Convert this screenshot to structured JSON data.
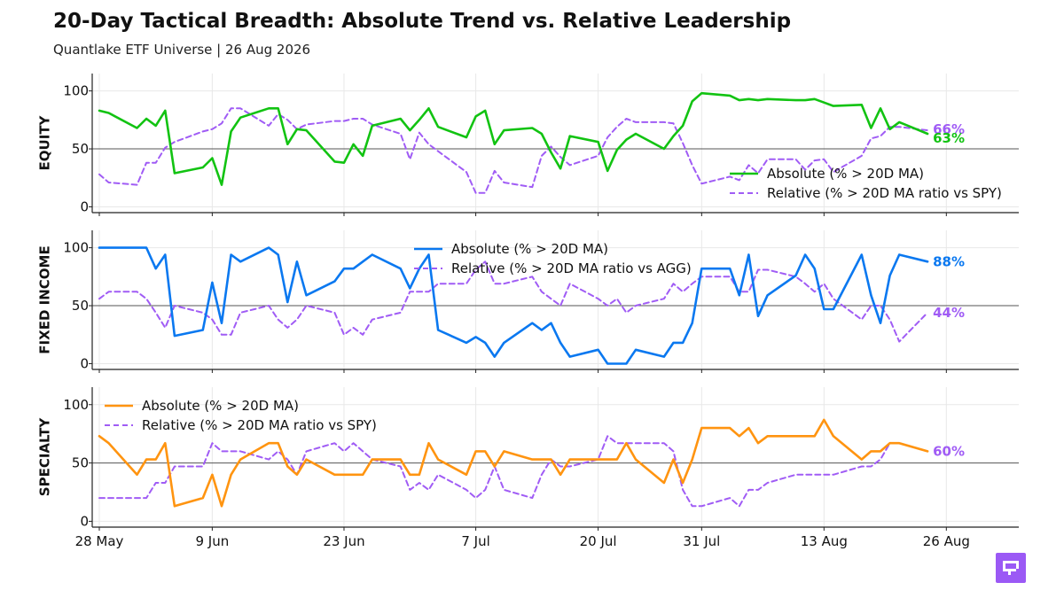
{
  "header": {
    "title": "20-Day Tactical Breadth: Absolute Trend vs. Relative Leadership",
    "subtitle": "Quantlake ETF Universe  |  26 Aug 2026"
  },
  "colors": {
    "relative": "#a05cf5",
    "equity_absolute": "#12c312",
    "fixed_income_absolute": "#0a78f0",
    "specialty_absolute": "#ff9410",
    "reference_line": "#555555",
    "grid": "#e8e8e8"
  },
  "logo": {
    "icon": "brand-logo-icon"
  },
  "chart_data": {
    "type": "line",
    "title": "20-Day Tactical Breadth: Absolute Trend vs. Relative Leadership",
    "subtitle": "Quantlake ETF Universe  |  26 Aug 2026",
    "x": [
      "2026-05-28",
      "2026-05-29",
      "2026-06-01",
      "2026-06-02",
      "2026-06-03",
      "2026-06-04",
      "2026-06-05",
      "2026-06-08",
      "2026-06-09",
      "2026-06-10",
      "2026-06-11",
      "2026-06-12",
      "2026-06-15",
      "2026-06-16",
      "2026-06-17",
      "2026-06-18",
      "2026-06-19",
      "2026-06-22",
      "2026-06-23",
      "2026-06-24",
      "2026-06-25",
      "2026-06-26",
      "2026-06-29",
      "2026-06-30",
      "2026-07-01",
      "2026-07-02",
      "2026-07-03",
      "2026-07-06",
      "2026-07-07",
      "2026-07-08",
      "2026-07-09",
      "2026-07-10",
      "2026-07-13",
      "2026-07-14",
      "2026-07-15",
      "2026-07-16",
      "2026-07-17",
      "2026-07-20",
      "2026-07-21",
      "2026-07-22",
      "2026-07-23",
      "2026-07-24",
      "2026-07-27",
      "2026-07-28",
      "2026-07-29",
      "2026-07-30",
      "2026-07-31",
      "2026-08-03",
      "2026-08-04",
      "2026-08-05",
      "2026-08-06",
      "2026-08-07",
      "2026-08-10",
      "2026-08-11",
      "2026-08-12",
      "2026-08-13",
      "2026-08-14",
      "2026-08-17",
      "2026-08-18",
      "2026-08-19",
      "2026-08-20",
      "2026-08-21",
      "2026-08-24",
      "2026-08-25",
      "2026-08-26"
    ],
    "xticks": [
      {
        "date": "2026-05-28",
        "label": "28 May"
      },
      {
        "date": "2026-06-09",
        "label": "9 Jun"
      },
      {
        "date": "2026-06-23",
        "label": "23 Jun"
      },
      {
        "date": "2026-07-07",
        "label": "7 Jul"
      },
      {
        "date": "2026-07-20",
        "label": "20 Jul"
      },
      {
        "date": "2026-07-31",
        "label": "31 Jul"
      },
      {
        "date": "2026-08-13",
        "label": "13 Aug"
      },
      {
        "date": "2026-08-26",
        "label": "26 Aug"
      }
    ],
    "xlim": [
      "2026-05-28",
      "2026-09-01"
    ],
    "ylim": [
      -5,
      115
    ],
    "yticks": [
      0,
      50,
      100
    ],
    "reference_line": 50,
    "grid": true,
    "panels": [
      {
        "ylabel": "EQUITY",
        "legend_position": "lower-right",
        "end_labels": [
          "66%",
          "63%"
        ],
        "series": [
          {
            "name": "Absolute (% > 20D MA)",
            "style": "solid",
            "values": [
              83,
              81,
              68,
              76,
              70,
              83,
              29,
              34,
              42,
              19,
              65,
              77,
              85,
              85,
              54,
              67,
              66,
              39,
              38,
              54,
              44,
              70,
              76,
              66,
              75,
              85,
              69,
              60,
              78,
              83,
              54,
              66,
              68,
              63,
              47,
              33,
              61,
              56,
              31,
              49,
              58,
              63,
              50,
              61,
              70,
              91,
              98,
              96,
              92,
              93,
              92,
              93,
              92,
              92,
              93,
              90,
              87,
              88,
              68,
              85,
              67,
              73,
              63,
              null,
              null
            ],
            "fix_note": ""
          },
          {
            "name": "Relative (% > 20D MA ratio vs SPY)",
            "style": "dashed",
            "values": [
              28,
              21,
              19,
              38,
              38,
              51,
              56,
              65,
              67,
              72,
              85,
              85,
              70,
              80,
              75,
              67,
              71,
              74,
              74,
              76,
              76,
              71,
              63,
              41,
              64,
              54,
              48,
              30,
              12,
              12,
              31,
              21,
              17,
              44,
              52,
              43,
              36,
              44,
              60,
              69,
              76,
              73,
              73,
              72,
              55,
              36,
              20,
              26,
              23,
              36,
              29,
              41,
              41,
              32,
              40,
              41,
              30,
              44,
              59,
              61,
              69,
              69,
              66,
              null,
              null
            ]
          }
        ]
      },
      {
        "ylabel": "FIXED INCOME",
        "legend_position": "upper-center",
        "end_labels": [
          "88%",
          "44%"
        ],
        "series": [
          {
            "name": "Absolute (% > 20D MA)",
            "style": "solid",
            "values": [
              100,
              100,
              100,
              100,
              82,
              94,
              24,
              29,
              70,
              35,
              94,
              88,
              100,
              94,
              53,
              88,
              59,
              71,
              82,
              82,
              88,
              94,
              82,
              65,
              82,
              94,
              29,
              18,
              23,
              18,
              6,
              18,
              35,
              29,
              35,
              18,
              6,
              12,
              0,
              0,
              0,
              12,
              6,
              18,
              18,
              35,
              82,
              82,
              59,
              94,
              41,
              59,
              76,
              94,
              82,
              47,
              47,
              94,
              59,
              35,
              76,
              94,
              88,
              null,
              null
            ]
          },
          {
            "name": "Relative (% > 20D MA ratio vs AGG)",
            "style": "dashed",
            "values": [
              56,
              62,
              62,
              56,
              44,
              31,
              50,
              44,
              38,
              25,
              25,
              44,
              50,
              38,
              31,
              38,
              50,
              44,
              25,
              31,
              25,
              38,
              44,
              62,
              62,
              62,
              69,
              69,
              81,
              88,
              69,
              69,
              75,
              62,
              56,
              50,
              69,
              56,
              50,
              56,
              44,
              50,
              56,
              69,
              62,
              69,
              75,
              75,
              62,
              62,
              81,
              81,
              75,
              69,
              62,
              69,
              56,
              38,
              50,
              50,
              38,
              19,
              44,
              null,
              null
            ]
          }
        ]
      },
      {
        "ylabel": "SPECIALTY",
        "legend_position": "upper-left",
        "end_labels": [
          "60%"
        ],
        "series": [
          {
            "name": "Absolute (% > 20D MA)",
            "style": "solid",
            "values": [
              73,
              67,
              40,
              53,
              53,
              67,
              13,
              20,
              40,
              13,
              40,
              53,
              67,
              67,
              47,
              40,
              53,
              40,
              40,
              40,
              40,
              53,
              53,
              40,
              40,
              67,
              53,
              40,
              60,
              60,
              47,
              60,
              53,
              53,
              53,
              40,
              53,
              53,
              53,
              53,
              67,
              53,
              33,
              53,
              33,
              53,
              80,
              80,
              73,
              80,
              67,
              73,
              73,
              73,
              73,
              87,
              73,
              53,
              60,
              60,
              67,
              67,
              60,
              null,
              null
            ]
          },
          {
            "name": "Relative (% > 20D MA ratio vs SPY)",
            "style": "dashed",
            "values": [
              20,
              20,
              20,
              20,
              33,
              33,
              47,
              47,
              67,
              60,
              60,
              60,
              53,
              60,
              53,
              40,
              60,
              67,
              60,
              67,
              60,
              53,
              47,
              27,
              33,
              27,
              40,
              27,
              20,
              27,
              47,
              27,
              20,
              40,
              53,
              47,
              47,
              53,
              73,
              67,
              67,
              67,
              67,
              60,
              27,
              13,
              13,
              20,
              13,
              27,
              27,
              33,
              40,
              40,
              40,
              40,
              40,
              47,
              47,
              53,
              67,
              67,
              60,
              null,
              null
            ]
          }
        ]
      }
    ]
  }
}
